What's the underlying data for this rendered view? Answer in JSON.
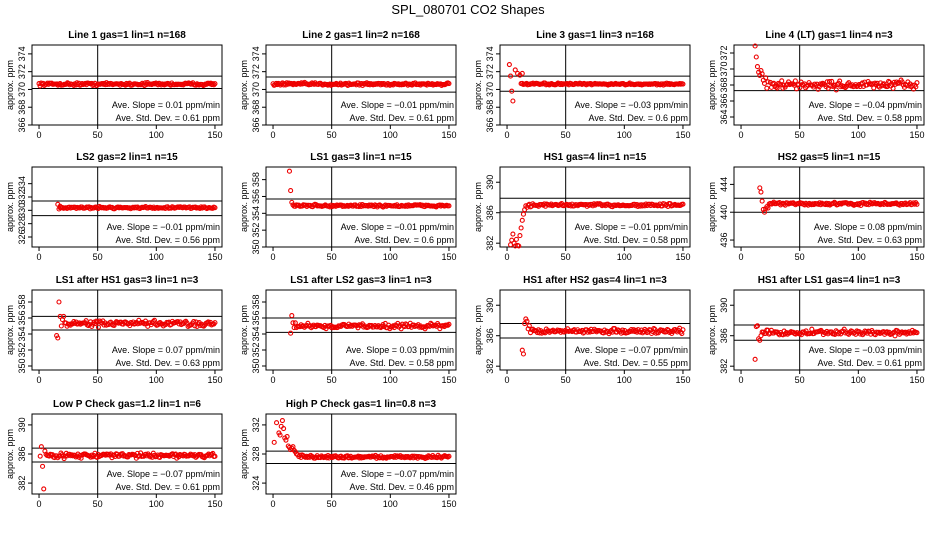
{
  "figure_title": "SPL_080701  CO2 Shapes",
  "chart_data": [
    {
      "type": "scatter",
      "title": "Line 1 gas=1 lin=1 n=168",
      "ylabel": "approx. ppm",
      "xlabel": "",
      "xlim": [
        0,
        150
      ],
      "ylim": [
        366,
        375
      ],
      "xticks": [
        0,
        50,
        100,
        150
      ],
      "yticks": [
        366,
        368,
        370,
        372,
        374
      ],
      "hlines": [
        370.1,
        371.5
      ],
      "vline": 50,
      "slope_label": "Ave. Slope =",
      "slope": "0.01",
      "slope_unit": "ppm/min",
      "sd_label": "Ave. Std. Dev. =",
      "sd": "0.61",
      "sd_unit": "ppm",
      "points": {
        "x_start": 0,
        "x_end": 150,
        "n": 168,
        "base": 370.6,
        "noise": 0.15,
        "init": []
      }
    },
    {
      "type": "scatter",
      "title": "Line 2 gas=1 lin=2 n=168",
      "ylabel": "approx. ppm",
      "xlabel": "",
      "xlim": [
        0,
        150
      ],
      "ylim": [
        366,
        375
      ],
      "xticks": [
        0,
        50,
        100,
        150
      ],
      "yticks": [
        366,
        368,
        370,
        372,
        374
      ],
      "hlines": [
        369.7,
        371.4
      ],
      "vline": 50,
      "slope_label": "Ave. Slope =",
      "slope": "−0.01",
      "slope_unit": "ppm/min",
      "sd_label": "Ave. Std. Dev. =",
      "sd": "0.61",
      "sd_unit": "ppm",
      "points": {
        "x_start": 0,
        "x_end": 150,
        "n": 168,
        "base": 370.6,
        "noise": 0.15,
        "init": []
      }
    },
    {
      "type": "scatter",
      "title": "Line 3 gas=1 lin=3 n=168",
      "ylabel": "approx. ppm",
      "xlabel": "",
      "xlim": [
        0,
        150
      ],
      "ylim": [
        366,
        375
      ],
      "xticks": [
        0,
        50,
        100,
        150
      ],
      "yticks": [
        366,
        368,
        370,
        372,
        374
      ],
      "hlines": [
        369.8,
        371.5
      ],
      "vline": 50,
      "slope_label": "Ave. Slope =",
      "slope": "−0.03",
      "slope_unit": "ppm/min",
      "sd_label": "Ave. Std. Dev. =",
      "sd": "0.6",
      "sd_unit": "ppm",
      "points": {
        "x_start": 12,
        "x_end": 150,
        "n": 150,
        "base": 370.6,
        "noise": 0.1,
        "init": [
          [
            2,
            372.8
          ],
          [
            3,
            371.5
          ],
          [
            4,
            369.8
          ],
          [
            5,
            368.7
          ],
          [
            7,
            372.2
          ],
          [
            9,
            371.8
          ],
          [
            11,
            371.6
          ],
          [
            13,
            371.8
          ]
        ]
      }
    },
    {
      "type": "scatter",
      "title": "Line 4 (LT) gas=1 lin=4 n=3",
      "ylabel": "approx. ppm",
      "xlabel": "",
      "xlim": [
        0,
        150
      ],
      "ylim": [
        363,
        373
      ],
      "xticks": [
        0,
        50,
        100,
        150
      ],
      "yticks": [
        364,
        366,
        368,
        370,
        372
      ],
      "hlines": [
        367.3,
        369.1
      ],
      "vline": 50,
      "slope_label": "Ave. Slope =",
      "slope": "−0.04",
      "slope_unit": "ppm/min",
      "sd_label": "Ave. Std. Dev. =",
      "sd": "0.58",
      "sd_unit": "ppm",
      "points": {
        "x_start": 25,
        "x_end": 150,
        "n": 130,
        "base": 368.0,
        "noise": 0.5,
        "init": [
          [
            12,
            373.2
          ],
          [
            13,
            371.5
          ],
          [
            14,
            370.3
          ],
          [
            15,
            369.6
          ],
          [
            16,
            369.2
          ],
          [
            17,
            369.8
          ],
          [
            18,
            369.4
          ],
          [
            19,
            368.6
          ],
          [
            20,
            368.2
          ],
          [
            21,
            368.9
          ],
          [
            22,
            367.6
          ],
          [
            23,
            368.4
          ]
        ]
      }
    },
    {
      "type": "scatter",
      "title": "LS2 gas=2 lin=1 n=15",
      "ylabel": "approx. ppm",
      "xlabel": "",
      "xlim": [
        0,
        150
      ],
      "ylim": [
        324.5,
        336.5
      ],
      "xticks": [
        0,
        50,
        100,
        150
      ],
      "yticks": [
        326,
        328,
        330,
        332,
        334
      ],
      "hlines": [
        329.2,
        331.4
      ],
      "vline": 50,
      "slope_label": "Ave. Slope =",
      "slope": "−0.01",
      "slope_unit": "ppm/min",
      "sd_label": "Ave. Std. Dev. =",
      "sd": "0.56",
      "sd_unit": "ppm",
      "points": {
        "x_start": 18,
        "x_end": 150,
        "n": 135,
        "base": 330.4,
        "noise": 0.15,
        "init": [
          [
            16,
            330.9
          ],
          [
            17,
            330.2
          ],
          [
            18,
            330.6
          ]
        ]
      }
    },
    {
      "type": "scatter",
      "title": "LS1 gas=3 lin=1 n=15",
      "ylabel": "approx. ppm",
      "xlabel": "",
      "xlim": [
        0,
        150
      ],
      "ylim": [
        350,
        359.5
      ],
      "xticks": [
        0,
        50,
        100,
        150
      ],
      "yticks": [
        350,
        352,
        354,
        356,
        358
      ],
      "hlines": [
        353.8,
        355.7
      ],
      "vline": 50,
      "slope_label": "Ave. Slope =",
      "slope": "−0.01",
      "slope_unit": "ppm/min",
      "sd_label": "Ave. Std. Dev. =",
      "sd": "0.6",
      "sd_unit": "ppm",
      "points": {
        "x_start": 18,
        "x_end": 150,
        "n": 135,
        "base": 354.9,
        "noise": 0.15,
        "init": [
          [
            14,
            359.0
          ],
          [
            15,
            356.7
          ],
          [
            16,
            355.3
          ],
          [
            17,
            355.0
          ]
        ]
      }
    },
    {
      "type": "scatter",
      "title": "HS1 gas=4 lin=1 n=15",
      "ylabel": "approx. ppm",
      "xlabel": "",
      "xlim": [
        0,
        150
      ],
      "ylim": [
        381.5,
        392
      ],
      "xticks": [
        0,
        50,
        100,
        150
      ],
      "yticks": [
        382,
        386,
        390
      ],
      "hlines": [
        386.1,
        387.9
      ],
      "vline": 50,
      "slope_label": "Ave. Slope =",
      "slope": "−0.01",
      "slope_unit": "ppm/min",
      "sd_label": "Ave. Std. Dev. =",
      "sd": "0.58",
      "sd_unit": "ppm",
      "points": {
        "x_start": 18,
        "x_end": 150,
        "n": 135,
        "base": 387.0,
        "noise": 0.2,
        "init": [
          [
            3,
            381.8
          ],
          [
            4,
            382.4
          ],
          [
            5,
            383.2
          ],
          [
            6,
            382.0
          ],
          [
            7,
            381.6
          ],
          [
            8,
            382.5
          ],
          [
            9,
            381.7
          ],
          [
            10,
            381.6
          ],
          [
            11,
            383.0
          ],
          [
            12,
            384.0
          ],
          [
            13,
            385.0
          ],
          [
            14,
            385.8
          ],
          [
            15,
            386.4
          ],
          [
            16,
            386.9
          ],
          [
            17,
            386.7
          ]
        ]
      }
    },
    {
      "type": "scatter",
      "title": "HS2 gas=5 lin=1 n=15",
      "ylabel": "approx. ppm",
      "xlabel": "",
      "xlim": [
        0,
        150
      ],
      "ylim": [
        435,
        446.5
      ],
      "xticks": [
        0,
        50,
        100,
        150
      ],
      "yticks": [
        436,
        440,
        444
      ],
      "hlines": [
        440.0,
        442.0
      ],
      "vline": 50,
      "slope_label": "Ave. Slope =",
      "slope": "0.08",
      "slope_unit": "ppm/min",
      "sd_label": "Ave. Std. Dev. =",
      "sd": "0.63",
      "sd_unit": "ppm",
      "points": {
        "x_start": 24,
        "x_end": 150,
        "n": 130,
        "base": 441.2,
        "noise": 0.2,
        "init": [
          [
            16,
            443.5
          ],
          [
            17,
            442.9
          ],
          [
            18,
            441.6
          ],
          [
            19,
            440.4
          ],
          [
            20,
            440.0
          ],
          [
            21,
            440.5
          ],
          [
            22,
            440.8
          ],
          [
            23,
            440.6
          ]
        ]
      }
    },
    {
      "type": "scatter",
      "title": "LS1 after HS1 gas=3 lin=1 n=3",
      "ylabel": "approx. ppm",
      "xlabel": "",
      "xlim": [
        0,
        150
      ],
      "ylim": [
        349.5,
        359.5
      ],
      "xticks": [
        0,
        50,
        100,
        150
      ],
      "yticks": [
        350,
        352,
        354,
        356,
        358
      ],
      "hlines": [
        354.5,
        356.2
      ],
      "vline": 50,
      "slope_label": "Ave. Slope =",
      "slope": "0.07",
      "slope_unit": "ppm/min",
      "sd_label": "Ave. Std. Dev. =",
      "sd": "0.63",
      "sd_unit": "ppm",
      "points": {
        "x_start": 22,
        "x_end": 150,
        "n": 135,
        "base": 355.3,
        "noise": 0.35,
        "init": [
          [
            15,
            353.8
          ],
          [
            16,
            353.5
          ],
          [
            17,
            358.0
          ],
          [
            18,
            356.2
          ],
          [
            19,
            355.0
          ],
          [
            20,
            355.8
          ],
          [
            21,
            356.2
          ]
        ]
      }
    },
    {
      "type": "scatter",
      "title": "LS1 after LS2 gas=3 lin=1 n=3",
      "ylabel": "approx. ppm",
      "xlabel": "",
      "xlim": [
        0,
        150
      ],
      "ylim": [
        349.5,
        359.5
      ],
      "xticks": [
        0,
        50,
        100,
        150
      ],
      "yticks": [
        350,
        352,
        354,
        356,
        358
      ],
      "hlines": [
        354.2,
        356.0
      ],
      "vline": 50,
      "slope_label": "Ave. Slope =",
      "slope": "0.03",
      "slope_unit": "ppm/min",
      "sd_label": "Ave. Std. Dev. =",
      "sd": "0.58",
      "sd_unit": "ppm",
      "points": {
        "x_start": 20,
        "x_end": 150,
        "n": 135,
        "base": 355.0,
        "noise": 0.3,
        "init": [
          [
            15,
            354.1
          ],
          [
            16,
            356.3
          ],
          [
            17,
            355.4
          ],
          [
            18,
            354.8
          ],
          [
            19,
            355.4
          ]
        ]
      }
    },
    {
      "type": "scatter",
      "title": "HS1 after HS2 gas=4 lin=1 n=3",
      "ylabel": "approx. ppm",
      "xlabel": "",
      "xlim": [
        0,
        150
      ],
      "ylim": [
        381.5,
        392
      ],
      "xticks": [
        0,
        50,
        100,
        150
      ],
      "yticks": [
        382,
        386,
        390
      ],
      "hlines": [
        385.7,
        387.6
      ],
      "vline": 50,
      "slope_label": "Ave. Slope =",
      "slope": "−0.07",
      "slope_unit": "ppm/min",
      "sd_label": "Ave. Std. Dev. =",
      "sd": "0.55",
      "sd_unit": "ppm",
      "points": {
        "x_start": 22,
        "x_end": 150,
        "n": 135,
        "base": 386.6,
        "noise": 0.3,
        "init": [
          [
            13,
            384.1
          ],
          [
            14,
            383.6
          ],
          [
            15,
            387.6
          ],
          [
            16,
            388.2
          ],
          [
            17,
            387.9
          ],
          [
            18,
            386.9
          ],
          [
            19,
            387.3
          ],
          [
            20,
            386.4
          ],
          [
            21,
            386.8
          ]
        ]
      }
    },
    {
      "type": "scatter",
      "title": "HS1 after LS1 gas=4 lin=1 n=3",
      "ylabel": "approx. ppm",
      "xlabel": "",
      "xlim": [
        0,
        150
      ],
      "ylim": [
        381.5,
        392
      ],
      "xticks": [
        0,
        50,
        100,
        150
      ],
      "yticks": [
        382,
        386,
        390
      ],
      "hlines": [
        385.4,
        387.4
      ],
      "vline": 50,
      "slope_label": "Ave. Slope =",
      "slope": "−0.03",
      "slope_unit": "ppm/min",
      "sd_label": "Ave. Std. Dev. =",
      "sd": "0.61",
      "sd_unit": "ppm",
      "points": {
        "x_start": 18,
        "x_end": 150,
        "n": 135,
        "base": 386.4,
        "noise": 0.35,
        "init": [
          [
            12,
            382.9
          ],
          [
            13,
            387.2
          ],
          [
            14,
            387.3
          ],
          [
            15,
            385.6
          ],
          [
            16,
            385.4
          ],
          [
            17,
            386.0
          ]
        ]
      }
    },
    {
      "type": "scatter",
      "title": "Low P Check gas=1.2 lin=1 n=6",
      "ylabel": "approx. ppm",
      "xlabel": "",
      "xlim": [
        0,
        150
      ],
      "ylim": [
        380.5,
        391.5
      ],
      "xticks": [
        0,
        50,
        100,
        150
      ],
      "yticks": [
        382,
        386,
        390
      ],
      "hlines": [
        384.9,
        386.8
      ],
      "vline": 50,
      "slope_label": "Ave. Slope =",
      "slope": "−0.07",
      "slope_unit": "ppm/min",
      "sd_label": "Ave. Std. Dev. =",
      "sd": "0.61",
      "sd_unit": "ppm",
      "points": {
        "x_start": 6,
        "x_end": 150,
        "n": 160,
        "base": 385.8,
        "noise": 0.3,
        "init": [
          [
            1,
            385.7
          ],
          [
            2,
            387.0
          ],
          [
            3,
            384.3
          ],
          [
            4,
            381.2
          ],
          [
            5,
            386.4
          ]
        ]
      }
    },
    {
      "type": "scatter",
      "title": "High P Check gas=1 lin=0.8 n=3",
      "ylabel": "approx. ppm",
      "xlabel": "",
      "xlim": [
        0,
        150
      ],
      "ylim": [
        322.5,
        333.5
      ],
      "xticks": [
        0,
        50,
        100,
        150
      ],
      "yticks": [
        324,
        328,
        332
      ],
      "hlines": [
        326.7,
        328.4
      ],
      "vline": 50,
      "slope_label": "Ave. Slope =",
      "slope": "−0.07",
      "slope_unit": "ppm/min",
      "sd_label": "Ave. Std. Dev. =",
      "sd": "0.46",
      "sd_unit": "ppm",
      "points": {
        "x_start": 22,
        "x_end": 150,
        "n": 140,
        "base": 327.6,
        "noise": 0.2,
        "init": [
          [
            1,
            329.6
          ],
          [
            3,
            332.3
          ],
          [
            5,
            330.9
          ],
          [
            6,
            330.6
          ],
          [
            7,
            331.8
          ],
          [
            8,
            332.6
          ],
          [
            9,
            331.5
          ],
          [
            10,
            330.2
          ],
          [
            11,
            329.9
          ],
          [
            12,
            330.4
          ],
          [
            13,
            329.1
          ],
          [
            14,
            328.9
          ],
          [
            15,
            328.6
          ],
          [
            16,
            328.8
          ],
          [
            17,
            329.0
          ],
          [
            18,
            328.5
          ],
          [
            19,
            328.3
          ],
          [
            20,
            328.0
          ],
          [
            21,
            327.9
          ]
        ]
      }
    }
  ]
}
